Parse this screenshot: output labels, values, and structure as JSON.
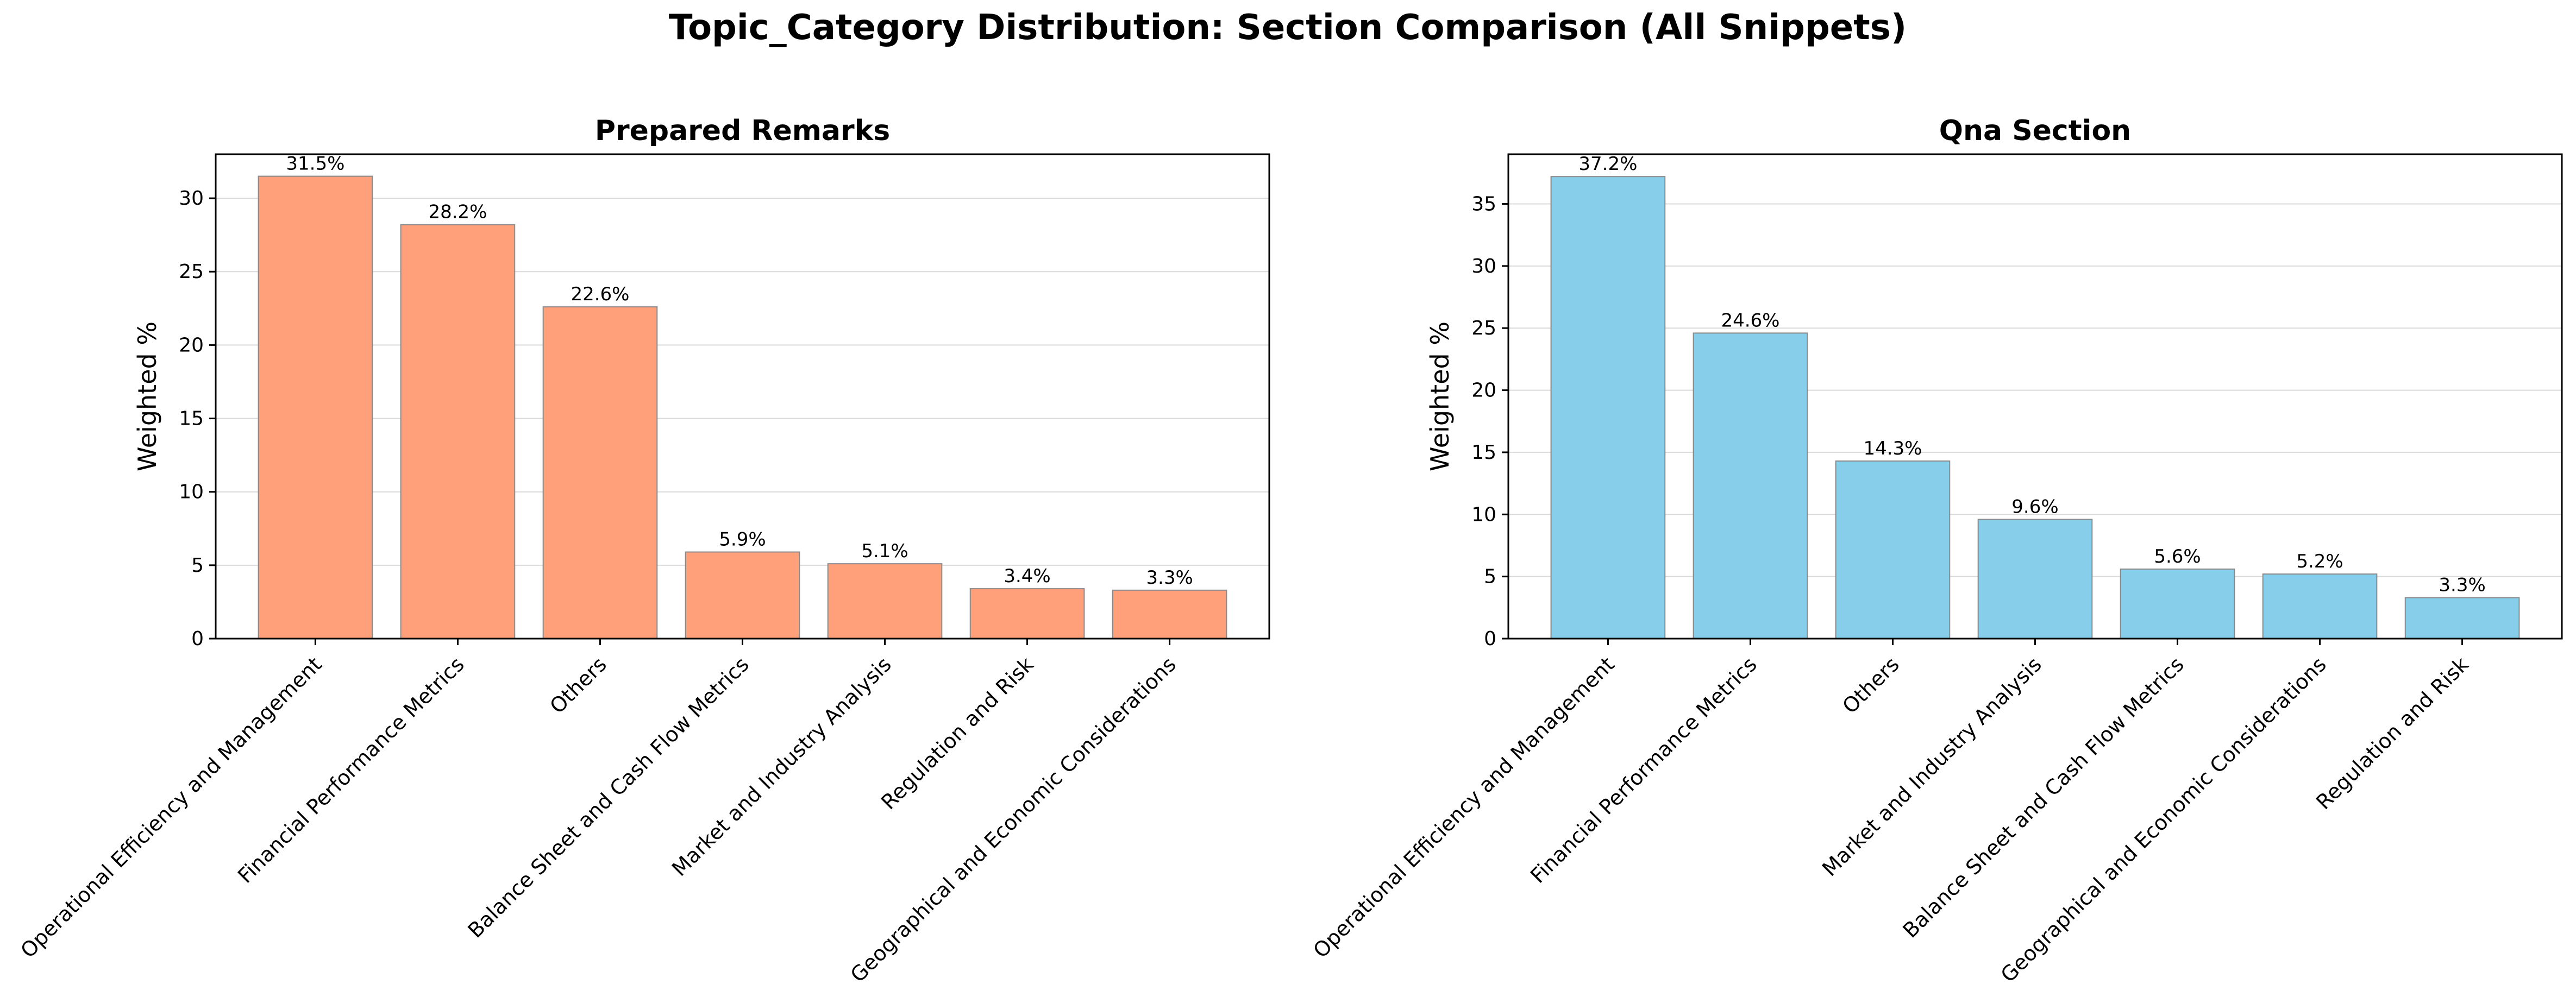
{
  "figure": {
    "title": "Topic_Category Distribution: Section Comparison (All Snippets)"
  },
  "chart_data": [
    {
      "type": "bar",
      "title": "Prepared Remarks",
      "xlabel": "",
      "ylabel": "Weighted %",
      "ylim": [
        0,
        33
      ],
      "yticks": [
        0,
        5,
        10,
        15,
        20,
        25,
        30
      ],
      "grid": "y",
      "bar_color": "#FFA07A",
      "categories": [
        "Operational Efficiency and Management",
        "Financial Performance Metrics",
        "Others",
        "Balance Sheet and Cash Flow Metrics",
        "Market and Industry Analysis",
        "Regulation and Risk",
        "Geographical and Economic Considerations"
      ],
      "values": [
        31.5,
        28.2,
        22.6,
        5.9,
        5.1,
        3.4,
        3.3
      ],
      "value_labels": [
        "31.5%",
        "28.2%",
        "22.6%",
        "5.9%",
        "5.1%",
        "3.4%",
        "3.3%"
      ]
    },
    {
      "type": "bar",
      "title": "Qna Section",
      "xlabel": "",
      "ylabel": "Weighted %",
      "ylim": [
        0,
        39
      ],
      "yticks": [
        0,
        5,
        10,
        15,
        20,
        25,
        30,
        35
      ],
      "grid": "y",
      "bar_color": "#87CEEB",
      "categories": [
        "Operational Efficiency and Management",
        "Financial Performance Metrics",
        "Others",
        "Market and Industry Analysis",
        "Balance Sheet and Cash Flow Metrics",
        "Geographical and Economic Considerations",
        "Regulation and Risk"
      ],
      "values": [
        37.2,
        24.6,
        14.3,
        9.6,
        5.6,
        5.2,
        3.3
      ],
      "value_labels": [
        "37.2%",
        "24.6%",
        "14.3%",
        "9.6%",
        "5.6%",
        "5.2%",
        "3.3%"
      ]
    }
  ]
}
